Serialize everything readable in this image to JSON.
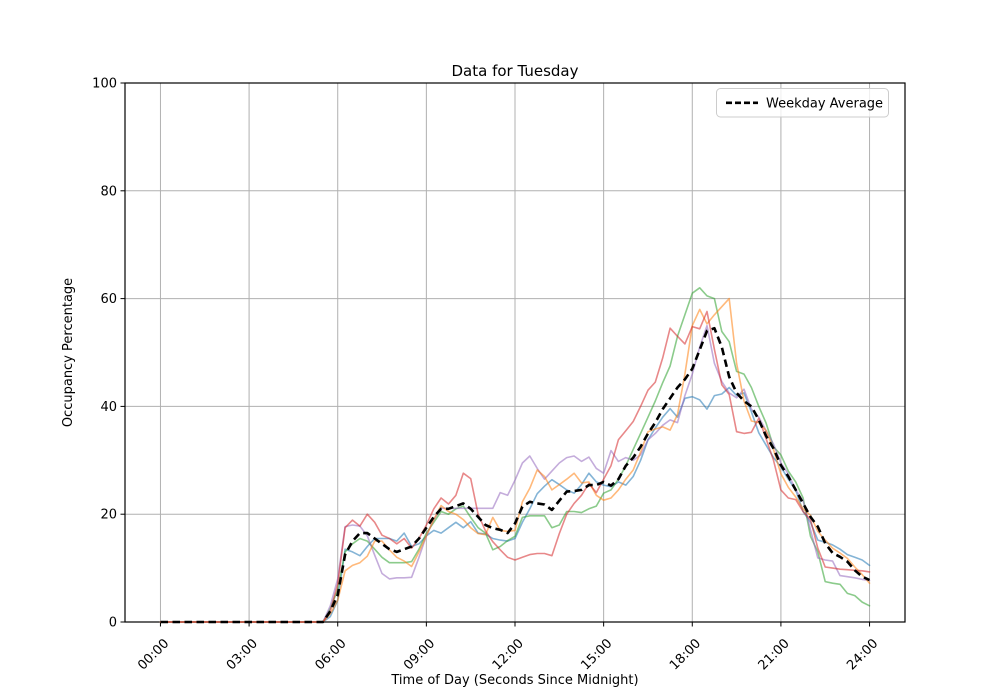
{
  "chart_data": {
    "type": "line",
    "title": "Data for Tuesday",
    "xlabel": "Time of Day (Seconds Since Midnight)",
    "ylabel": "Occupancy Percentage",
    "xlim": [
      -1.2,
      25.2
    ],
    "ylim": [
      0,
      100
    ],
    "grid": true,
    "legend": {
      "position": "upper right",
      "label": "Weekday Average"
    },
    "colors": {
      "grid": "#b0b0b0",
      "spine": "#000000",
      "background": "#ffffff",
      "legend_border": "#cccccc"
    },
    "x_ticks": [
      {
        "hour": 0,
        "label": "00:00"
      },
      {
        "hour": 3,
        "label": "03:00"
      },
      {
        "hour": 6,
        "label": "06:00"
      },
      {
        "hour": 9,
        "label": "09:00"
      },
      {
        "hour": 12,
        "label": "12:00"
      },
      {
        "hour": 15,
        "label": "15:00"
      },
      {
        "hour": 18,
        "label": "18:00"
      },
      {
        "hour": 21,
        "label": "21:00"
      },
      {
        "hour": 24,
        "label": "24:00"
      }
    ],
    "y_ticks": [
      0,
      20,
      40,
      60,
      80,
      100
    ],
    "x_start_hour": 0,
    "x_step_hours": 0.25,
    "series": [
      {
        "id": "blue",
        "color": "#1f77b4",
        "opacity": 0.55,
        "values": [
          0,
          0,
          0,
          0,
          0,
          0,
          0,
          0,
          0,
          0,
          0,
          0,
          0,
          0,
          0,
          0,
          0,
          0,
          0,
          0,
          0,
          0,
          0,
          1,
          4,
          13.5,
          13,
          12.3,
          14,
          15.5,
          15.5,
          15.5,
          15,
          16.5,
          14,
          14.5,
          16,
          17,
          16.5,
          17.5,
          18.5,
          17.5,
          18.6,
          16.5,
          16.3,
          15.5,
          15.2,
          15,
          15.5,
          18.5,
          21,
          23.8,
          25.2,
          26.4,
          25.5,
          24.5,
          23.9,
          25.5,
          27.6,
          26,
          25.4,
          25.1,
          26,
          25.4,
          27,
          30,
          33.8,
          36,
          38,
          39.6,
          38,
          41.5,
          41.8,
          41.2,
          39.5,
          42,
          42.3,
          43.5,
          42,
          42.5,
          39,
          35.1,
          32.8,
          30.5,
          28.8,
          26.5,
          24.5,
          20.5,
          18.5,
          15.2,
          14.8,
          14.3,
          13.5,
          12.5,
          12,
          11.5,
          10.5
        ]
      },
      {
        "id": "green",
        "color": "#2ca02c",
        "opacity": 0.55,
        "values": [
          0,
          0,
          0,
          0,
          0,
          0,
          0,
          0,
          0,
          0,
          0,
          0,
          0,
          0,
          0,
          0,
          0,
          0,
          0,
          0,
          0,
          0,
          0,
          2.5,
          6,
          13,
          14.5,
          15.5,
          15,
          13.5,
          12,
          11,
          11,
          11,
          11.2,
          13.5,
          16.5,
          18.5,
          20.5,
          20,
          21,
          21.5,
          19.4,
          17.5,
          16.5,
          13.4,
          14,
          15.1,
          15.9,
          19.4,
          19.7,
          19.7,
          19.7,
          17.5,
          18,
          20.5,
          20.5,
          20.3,
          21,
          21.5,
          23.9,
          24.5,
          26.5,
          29,
          32,
          35,
          38,
          41,
          44.4,
          47.5,
          53,
          57,
          61,
          62,
          60.5,
          60,
          53.9,
          52,
          46.5,
          46,
          43.5,
          40,
          36.9,
          32.5,
          31,
          28,
          26,
          23,
          15.9,
          13,
          7.5,
          7.2,
          7,
          5.3,
          4.9,
          3.7,
          3
        ]
      },
      {
        "id": "purple",
        "color": "#9467bd",
        "opacity": 0.55,
        "values": [
          0,
          0,
          0,
          0,
          0,
          0,
          0,
          0,
          0,
          0,
          0,
          0,
          0,
          0,
          0,
          0,
          0,
          0,
          0,
          0,
          0,
          0,
          0,
          3,
          8,
          17.7,
          18,
          17.8,
          16,
          12.4,
          9,
          8,
          8.2,
          8.2,
          8.3,
          12,
          16,
          19,
          21.1,
          21.1,
          21.1,
          21.1,
          21.1,
          21.1,
          21.1,
          21.1,
          24,
          23.5,
          26.3,
          29.5,
          30.8,
          28.5,
          26.5,
          28,
          29.5,
          30.5,
          30.8,
          29.8,
          30.6,
          28.5,
          27.6,
          31.8,
          29.8,
          30.5,
          30,
          31,
          33.8,
          35,
          36.5,
          37.5,
          37,
          42,
          46,
          51,
          55,
          48,
          44.6,
          42.5,
          41.6,
          43.2,
          39.5,
          38,
          35.5,
          33,
          29.5,
          27.5,
          24.5,
          22.5,
          17.1,
          11.9,
          11.5,
          11.3,
          8.6,
          8.4,
          8.2,
          7.9,
          7.7
        ]
      },
      {
        "id": "orange",
        "color": "#ff7f0e",
        "opacity": 0.55,
        "values": [
          0,
          0,
          0,
          0,
          0,
          0,
          0,
          0,
          0,
          0,
          0,
          0,
          0,
          0,
          0,
          0,
          0,
          0,
          0,
          0,
          0,
          0,
          0,
          1.5,
          4,
          9.5,
          10.5,
          11,
          12.2,
          15,
          15,
          13.4,
          12,
          11.3,
          10.3,
          13,
          16,
          19,
          21.6,
          20.5,
          20,
          19,
          17.5,
          16.4,
          16.2,
          19.4,
          17,
          16.8,
          17,
          22.3,
          24.8,
          28.2,
          27,
          24.5,
          25.5,
          26.5,
          27.6,
          25.8,
          26,
          23.5,
          22.6,
          23,
          24.5,
          26.5,
          28.2,
          31.5,
          35.3,
          35.8,
          36.2,
          35.6,
          38.5,
          46,
          55,
          58,
          55.3,
          57,
          58.5,
          60,
          48,
          41,
          37.3,
          37,
          35.5,
          32,
          27.5,
          25,
          23.2,
          21,
          19.8,
          16.8,
          15.2,
          13.7,
          12.8,
          11.8,
          10.2,
          8.8,
          7.2
        ]
      },
      {
        "id": "red",
        "color": "#d62728",
        "opacity": 0.55,
        "values": [
          0,
          0,
          0,
          0,
          0,
          0,
          0,
          0,
          0,
          0,
          0,
          0,
          0,
          0,
          0,
          0,
          0,
          0,
          0,
          0,
          0,
          0,
          0,
          2,
          7,
          17.5,
          18.9,
          17.8,
          20,
          18.5,
          16.1,
          15.5,
          14.5,
          15.5,
          13.7,
          15.5,
          18,
          21,
          23,
          21.9,
          23.5,
          27.6,
          26.6,
          20,
          16.9,
          14.9,
          13.4,
          12,
          11.5,
          12,
          12.5,
          12.7,
          12.7,
          12.3,
          16.4,
          20,
          22,
          23.5,
          25.7,
          24,
          26.5,
          29,
          33.8,
          35.5,
          37.2,
          40,
          43,
          44.5,
          49,
          54.5,
          53,
          51.6,
          54.8,
          54.4,
          57.6,
          50.6,
          44,
          42.2,
          35.3,
          35,
          35.2,
          37.8,
          34,
          30,
          24.5,
          23,
          22.7,
          20.5,
          19,
          13.7,
          10.2,
          10,
          9.8,
          9.7,
          9.6,
          9.5,
          9.3
        ]
      }
    ],
    "average": {
      "name": "Weekday Average",
      "color": "#000000",
      "dashed": true,
      "values": [
        0,
        0,
        0,
        0,
        0,
        0,
        0,
        0,
        0,
        0,
        0,
        0,
        0,
        0,
        0,
        0,
        0,
        0,
        0,
        0,
        0,
        0,
        0,
        2,
        5,
        12.5,
        15,
        16.5,
        16.5,
        15.5,
        14.5,
        13.5,
        13,
        13.5,
        14,
        15.5,
        17.5,
        19.5,
        21,
        21,
        21.5,
        22,
        21,
        19.5,
        18,
        17.4,
        17.1,
        16.5,
        18.3,
        21.4,
        22.3,
        22,
        21.8,
        20.8,
        22.5,
        24.2,
        24.3,
        24.5,
        25.4,
        25.4,
        26,
        25.3,
        26.5,
        29,
        30.5,
        32.5,
        35,
        37,
        39.5,
        41.5,
        43.5,
        45,
        47,
        50.5,
        54,
        54.5,
        51,
        45.5,
        42.5,
        41,
        40,
        37.5,
        34.5,
        32.2,
        29.1,
        27,
        24.5,
        22,
        19.5,
        17.7,
        14.6,
        12.8,
        12.1,
        11.2,
        9.6,
        8.4,
        7.8
      ]
    }
  }
}
